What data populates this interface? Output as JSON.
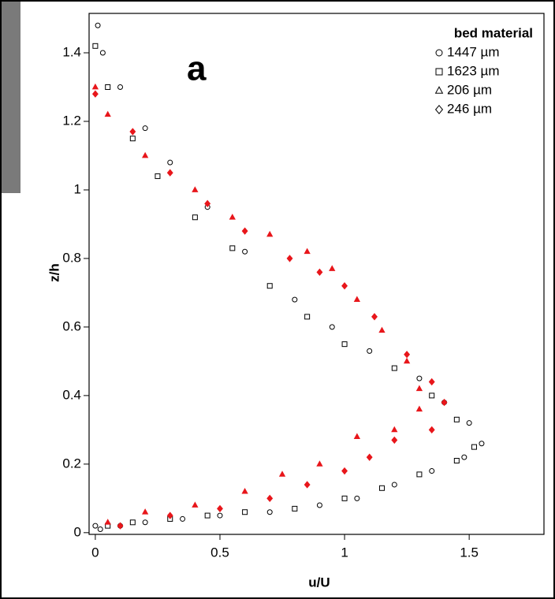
{
  "chart_data": {
    "type": "scatter",
    "annotation": "a",
    "xlabel": "u/U",
    "ylabel": "z/h",
    "xlim": [
      -0.025,
      1.8
    ],
    "ylim": [
      -0.005,
      1.515
    ],
    "xticks": [
      0,
      0.5,
      1,
      1.5
    ],
    "yticks": [
      0,
      0.2,
      0.4,
      0.6,
      0.8,
      1,
      1.2,
      1.4
    ],
    "legend_title": "bed material",
    "legend_position": "upper right",
    "legend_color": "#000000",
    "series": [
      {
        "name": "1447 µm",
        "marker": "circle",
        "color": "#000000",
        "filled": false,
        "x": [
          0,
          0.02,
          0.1,
          0.2,
          0.35,
          0.5,
          0.7,
          0.9,
          1.05,
          1.2,
          1.35,
          1.48,
          1.55,
          1.5,
          1.4,
          1.3,
          1.1,
          0.95,
          0.8,
          0.6,
          0.45,
          0.3,
          0.2,
          0.1,
          0.03,
          0.01
        ],
        "values": [
          0.02,
          0.01,
          0.02,
          0.03,
          0.04,
          0.05,
          0.06,
          0.08,
          0.1,
          0.14,
          0.18,
          0.22,
          0.26,
          0.32,
          0.38,
          0.45,
          0.53,
          0.6,
          0.68,
          0.82,
          0.95,
          1.08,
          1.18,
          1.3,
          1.4,
          1.48
        ]
      },
      {
        "name": "1623 µm",
        "marker": "square",
        "color": "#000000",
        "filled": false,
        "x": [
          0.05,
          0.15,
          0.3,
          0.45,
          0.6,
          0.8,
          1.0,
          1.15,
          1.3,
          1.45,
          1.52,
          1.45,
          1.35,
          1.2,
          1.0,
          0.85,
          0.7,
          0.55,
          0.4,
          0.25,
          0.15,
          0.05,
          0
        ],
        "values": [
          0.02,
          0.03,
          0.04,
          0.05,
          0.06,
          0.07,
          0.1,
          0.13,
          0.17,
          0.21,
          0.25,
          0.33,
          0.4,
          0.48,
          0.55,
          0.63,
          0.72,
          0.83,
          0.92,
          1.04,
          1.15,
          1.3,
          1.42
        ]
      },
      {
        "name": "206  µm",
        "marker": "triangle",
        "color": "#e8161b",
        "filled": true,
        "x": [
          0.05,
          0.2,
          0.4,
          0.6,
          0.75,
          0.9,
          1.05,
          1.2,
          1.3,
          1.3,
          1.25,
          1.15,
          1.05,
          0.95,
          0.85,
          0.7,
          0.55,
          0.4,
          0.2,
          0.05,
          0
        ],
        "values": [
          0.03,
          0.06,
          0.08,
          0.12,
          0.17,
          0.2,
          0.28,
          0.3,
          0.36,
          0.42,
          0.5,
          0.59,
          0.68,
          0.77,
          0.82,
          0.87,
          0.92,
          1.0,
          1.1,
          1.22,
          1.3
        ]
      },
      {
        "name": "246  µm",
        "marker": "diamond",
        "color": "#e8161b",
        "filled": true,
        "x": [
          0.1,
          0.3,
          0.5,
          0.7,
          0.85,
          1.0,
          1.1,
          1.2,
          1.35,
          1.4,
          1.35,
          1.25,
          1.12,
          1.0,
          0.9,
          0.78,
          0.6,
          0.45,
          0.3,
          0.15,
          0
        ],
        "values": [
          0.02,
          0.05,
          0.07,
          0.1,
          0.14,
          0.18,
          0.22,
          0.27,
          0.3,
          0.38,
          0.44,
          0.52,
          0.63,
          0.72,
          0.76,
          0.8,
          0.88,
          0.96,
          1.05,
          1.17,
          1.28
        ]
      }
    ]
  }
}
